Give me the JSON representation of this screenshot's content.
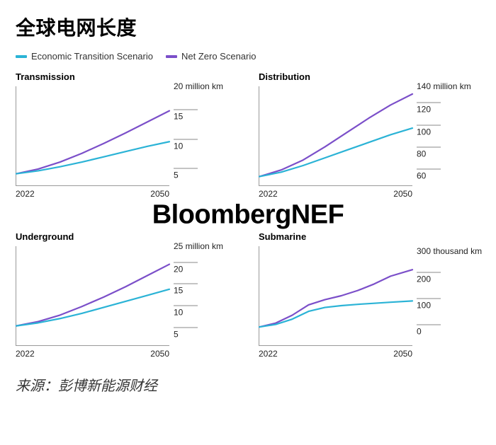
{
  "title": "全球电网长度",
  "legend": [
    {
      "label": "Economic Transition Scenario",
      "color": "#2bb3d6"
    },
    {
      "label": "Net Zero Scenario",
      "color": "#7b4fc9"
    }
  ],
  "watermark": "BloombergNEF",
  "source_label": "来源：彭博新能源财经",
  "line_width": 2.2,
  "axis_color": "#999999",
  "tick_color": "#888888",
  "background_color": "#ffffff",
  "title_fontsize": 28,
  "subtitle_fontsize": 13,
  "tick_fontsize": 12,
  "unit_fontsize": 12,
  "xlim": [
    2022,
    2050
  ],
  "xticks": [
    2022,
    2050
  ],
  "charts": [
    {
      "title": "Transmission",
      "unit": "million km",
      "ylim": [
        3,
        20
      ],
      "yticks_top_label": "20 million km",
      "yticks": [
        5,
        10,
        15,
        20
      ],
      "series": [
        {
          "color": "#7b4fc9",
          "x": [
            2022,
            2026,
            2030,
            2034,
            2038,
            2042,
            2046,
            2050
          ],
          "y": [
            5.0,
            5.8,
            7.0,
            8.5,
            10.2,
            12.0,
            13.9,
            15.8
          ]
        },
        {
          "color": "#2bb3d6",
          "x": [
            2022,
            2026,
            2030,
            2034,
            2038,
            2042,
            2046,
            2050
          ],
          "y": [
            5.0,
            5.5,
            6.2,
            7.0,
            7.9,
            8.8,
            9.7,
            10.5
          ]
        }
      ]
    },
    {
      "title": "Distribution",
      "unit": "million km",
      "ylim": [
        50,
        140
      ],
      "yticks_top_label": "140 million km",
      "yticks": [
        60,
        80,
        100,
        120,
        140
      ],
      "series": [
        {
          "color": "#7b4fc9",
          "x": [
            2022,
            2026,
            2030,
            2034,
            2038,
            2042,
            2046,
            2050
          ],
          "y": [
            58,
            64,
            73,
            85,
            98,
            111,
            123,
            133
          ]
        },
        {
          "color": "#2bb3d6",
          "x": [
            2022,
            2026,
            2030,
            2034,
            2038,
            2042,
            2046,
            2050
          ],
          "y": [
            58,
            62,
            68,
            75,
            82,
            89,
            96,
            102
          ]
        }
      ]
    },
    {
      "title": "Underground",
      "unit": "million km",
      "ylim": [
        2,
        25
      ],
      "yticks_top_label": "25 million km",
      "yticks": [
        5,
        10,
        15,
        20,
        25
      ],
      "series": [
        {
          "color": "#7b4fc9",
          "x": [
            2022,
            2026,
            2030,
            2034,
            2038,
            2042,
            2046,
            2050
          ],
          "y": [
            6.5,
            7.5,
            9.0,
            11.0,
            13.2,
            15.6,
            18.2,
            20.8
          ]
        },
        {
          "color": "#2bb3d6",
          "x": [
            2022,
            2026,
            2030,
            2034,
            2038,
            2042,
            2046,
            2050
          ],
          "y": [
            6.5,
            7.2,
            8.2,
            9.4,
            10.8,
            12.2,
            13.6,
            15.0
          ]
        }
      ]
    },
    {
      "title": "Submarine",
      "unit": "thousand km",
      "ylim": [
        -60,
        320
      ],
      "yticks_top_label": "300 thousand km",
      "yticks": [
        0,
        100,
        200,
        300
      ],
      "series": [
        {
          "color": "#7b4fc9",
          "x": [
            2022,
            2025,
            2028,
            2031,
            2034,
            2037,
            2040,
            2043,
            2046,
            2050
          ],
          "y": [
            10,
            25,
            55,
            95,
            115,
            130,
            150,
            175,
            205,
            230
          ]
        },
        {
          "color": "#2bb3d6",
          "x": [
            2022,
            2025,
            2028,
            2031,
            2034,
            2037,
            2040,
            2043,
            2046,
            2050
          ],
          "y": [
            10,
            20,
            40,
            70,
            85,
            92,
            97,
            101,
            105,
            110
          ]
        }
      ]
    }
  ]
}
